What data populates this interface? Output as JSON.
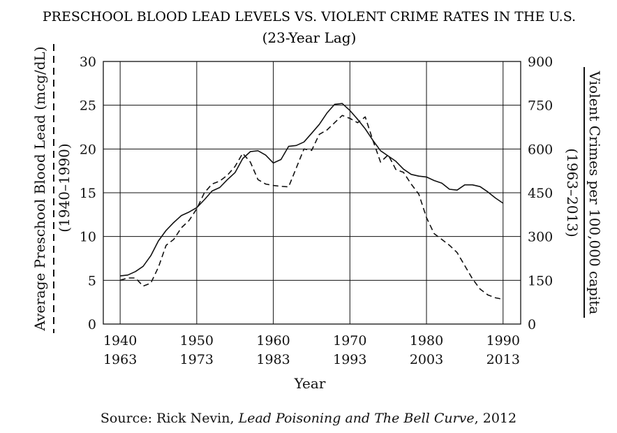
{
  "chart_data": {
    "type": "line",
    "title": "PRESCHOOL BLOOD LEAD LEVELS VS. VIOLENT CRIME RATES IN THE U.S.",
    "subtitle": "(23-Year Lag)",
    "xlabel": "Year",
    "y_left_label": "Average Preschool Blood Lead (mcg/dL)",
    "y_left_sublabel": "(1940–1990)",
    "y_right_label": "Violent Crimes per 100,000 capita",
    "y_right_sublabel": "(1963–2013)",
    "x_ticks_top": [
      "1940",
      "1950",
      "1960",
      "1970",
      "1980",
      "1990"
    ],
    "x_ticks_bottom": [
      "1963",
      "1973",
      "1983",
      "1993",
      "2003",
      "2013"
    ],
    "y_left_ticks": [
      "0",
      "5",
      "10",
      "15",
      "20",
      "25",
      "30"
    ],
    "y_right_ticks": [
      "0",
      "150",
      "300",
      "450",
      "600",
      "750",
      "900"
    ],
    "xlim": [
      1937.8,
      1992.3
    ],
    "ylim_left": [
      0,
      30
    ],
    "ylim_right": [
      0,
      900
    ],
    "grid": true,
    "series": [
      {
        "style": "solid",
        "axis": "left",
        "x": [
          1940,
          1941,
          1942,
          1943,
          1944,
          1945,
          1946,
          1947,
          1948,
          1949,
          1950,
          1951,
          1952,
          1953,
          1954,
          1955,
          1956,
          1957,
          1958,
          1959,
          1960,
          1961,
          1962,
          1963,
          1964,
          1965,
          1966,
          1967,
          1968,
          1969,
          1970,
          1971,
          1972,
          1973,
          1974,
          1975,
          1976,
          1977,
          1978,
          1979,
          1980,
          1981,
          1982,
          1983,
          1984,
          1985,
          1986,
          1987,
          1988,
          1989,
          1990
        ],
        "y": [
          5.5,
          5.6,
          6.0,
          6.6,
          7.8,
          9.5,
          10.7,
          11.6,
          12.4,
          12.8,
          13.3,
          14.2,
          15.2,
          15.6,
          16.5,
          17.3,
          18.9,
          19.7,
          19.8,
          19.3,
          18.4,
          18.8,
          20.3,
          20.4,
          20.8,
          21.8,
          22.8,
          24.1,
          25.1,
          25.2,
          24.4,
          23.4,
          22.3,
          21.0,
          19.8,
          19.2,
          18.6,
          17.7,
          17.1,
          16.9,
          16.8,
          16.4,
          16.1,
          15.4,
          15.3,
          15.9,
          15.9,
          15.7,
          15.1,
          14.4,
          13.8
        ]
      },
      {
        "style": "dashed",
        "axis": "right",
        "x": [
          1940,
          1941,
          1942,
          1943,
          1944,
          1945,
          1946,
          1947,
          1948,
          1949,
          1950,
          1951,
          1952,
          1953,
          1954,
          1955,
          1956,
          1957,
          1958,
          1959,
          1960,
          1961,
          1962,
          1963,
          1964,
          1965,
          1966,
          1967,
          1968,
          1969,
          1970,
          1971,
          1972,
          1973,
          1974,
          1975,
          1976,
          1977,
          1978,
          1979,
          1980,
          1981,
          1982,
          1983,
          1984,
          1985,
          1986,
          1987,
          1988,
          1989,
          1990
        ],
        "y": [
          150,
          158,
          158,
          130,
          140,
          195,
          270,
          290,
          330,
          355,
          395,
          450,
          480,
          490,
          510,
          540,
          585,
          555,
          495,
          480,
          475,
          472,
          470,
          535,
          600,
          595,
          650,
          665,
          690,
          715,
          705,
          690,
          710,
          630,
          555,
          580,
          530,
          520,
          480,
          445,
          365,
          310,
          290,
          270,
          245,
          200,
          155,
          120,
          100,
          90,
          85
        ]
      }
    ]
  },
  "source": {
    "prefix": "Source: Rick Nevin, ",
    "title": "Lead Poisoning and The Bell Curve",
    "suffix": ", 2012"
  }
}
